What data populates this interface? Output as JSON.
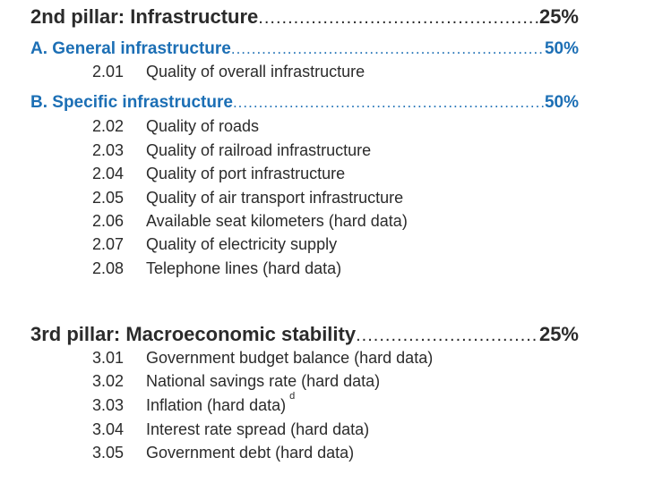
{
  "pillar2": {
    "title": "2nd pillar: Infrastructure",
    "weight": "25%",
    "section_a": {
      "title": "A. General infrastructure",
      "weight": "50%",
      "items": [
        {
          "code": "2.01",
          "text": "Quality of overall infrastructure"
        }
      ]
    },
    "section_b": {
      "title": "B. Specific infrastructure",
      "weight": "50%",
      "items": [
        {
          "code": "2.02",
          "text": "Quality of roads"
        },
        {
          "code": "2.03",
          "text": "Quality of railroad infrastructure"
        },
        {
          "code": "2.04",
          "text": "Quality of port infrastructure"
        },
        {
          "code": "2.05",
          "text": "Quality of air transport infrastructure"
        },
        {
          "code": "2.06",
          "text": "Available seat kilometers (hard data)"
        },
        {
          "code": "2.07",
          "text": "Quality of electricity supply"
        },
        {
          "code": "2.08",
          "text": "Telephone lines (hard data)"
        }
      ]
    }
  },
  "pillar3": {
    "title": "3rd pillar: Macroeconomic stability",
    "weight": "25%",
    "items": [
      {
        "code": "3.01",
        "text": "Government budget balance (hard data)"
      },
      {
        "code": "3.02",
        "text": "National savings rate (hard data)"
      },
      {
        "code": "3.03",
        "text": "Inflation (hard data)",
        "note": "d"
      },
      {
        "code": "3.04",
        "text": "Interest rate spread (hard data)"
      },
      {
        "code": "3.05",
        "text": "Government debt (hard data)"
      }
    ]
  },
  "colors": {
    "heading_text": "#2b2b2b",
    "subsection_text": "#1c6fb5",
    "background": "#ffffff"
  }
}
